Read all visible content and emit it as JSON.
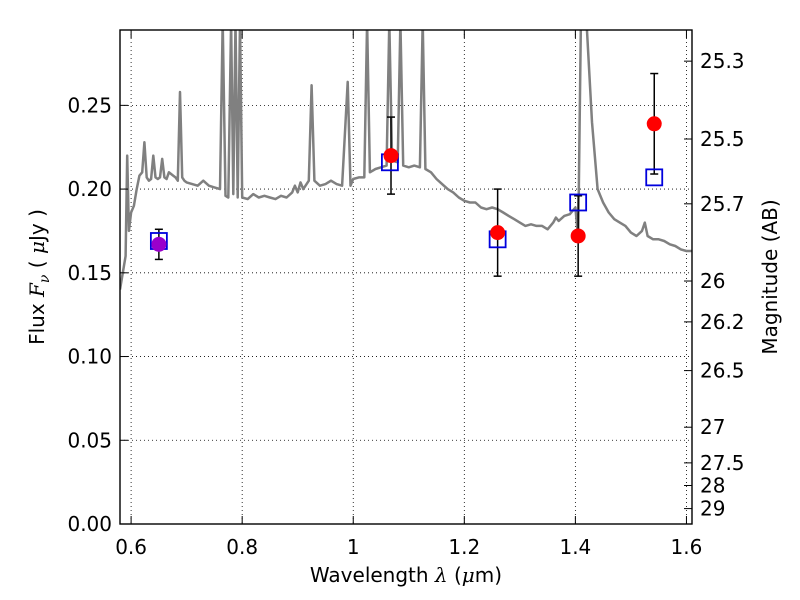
{
  "chart_data": {
    "type": "scatter",
    "xlabel": "Wavelength  λ (μm)",
    "xlabel_parts": {
      "prefix": "Wavelength  ",
      "symbol": "λ",
      "unit_open": " (",
      "unit_symbol": "μ",
      "unit_close": "m)"
    },
    "ylabel": "Flux  Fν  ( μJy )",
    "ylabel_parts": {
      "prefix": "Flux  ",
      "symbol": "F",
      "sub": "ν",
      "unit_open": "  ( ",
      "unit_symbol": "μ",
      "unit_close": "Jy )"
    },
    "y2label": "Magnitude (AB)",
    "xlim": [
      0.58,
      1.61
    ],
    "ylim": [
      0.0,
      0.295
    ],
    "grid": true,
    "x_ticks": [
      {
        "value": 0.6,
        "label": "0.6"
      },
      {
        "value": 0.8,
        "label": "0.8"
      },
      {
        "value": 1.0,
        "label": "1"
      },
      {
        "value": 1.2,
        "label": "1.2"
      },
      {
        "value": 1.4,
        "label": "1.4"
      },
      {
        "value": 1.6,
        "label": "1.6"
      }
    ],
    "y_ticks": [
      {
        "value": 0.0,
        "label": "0.00"
      },
      {
        "value": 0.05,
        "label": "0.05"
      },
      {
        "value": 0.1,
        "label": "0.10"
      },
      {
        "value": 0.15,
        "label": "0.15"
      },
      {
        "value": 0.2,
        "label": "0.20"
      },
      {
        "value": 0.25,
        "label": "0.25"
      }
    ],
    "y2_ticks": [
      {
        "label": "25.3",
        "flux": 0.2764
      },
      {
        "label": "25.5",
        "flux": 0.2299
      },
      {
        "label": "25.7",
        "flux": 0.1912
      },
      {
        "label": "26",
        "flux": 0.1451
      },
      {
        "label": "26.2",
        "flux": 0.1207
      },
      {
        "label": "26.5",
        "flux": 0.0916
      },
      {
        "label": "27",
        "flux": 0.0578
      },
      {
        "label": "27.5",
        "flux": 0.0365
      },
      {
        "label": "28",
        "flux": 0.023
      },
      {
        "label": "29",
        "flux": 0.0092
      }
    ],
    "series": [
      {
        "kind": "model_spectrum",
        "color": "#808080",
        "points": [
          [
            0.58,
            0.14
          ],
          [
            0.59,
            0.16
          ],
          [
            0.593,
            0.22
          ],
          [
            0.596,
            0.175
          ],
          [
            0.6,
            0.186
          ],
          [
            0.605,
            0.19
          ],
          [
            0.61,
            0.2
          ],
          [
            0.615,
            0.208
          ],
          [
            0.62,
            0.21
          ],
          [
            0.624,
            0.228
          ],
          [
            0.628,
            0.207
          ],
          [
            0.632,
            0.205
          ],
          [
            0.636,
            0.206
          ],
          [
            0.64,
            0.22
          ],
          [
            0.644,
            0.207
          ],
          [
            0.648,
            0.206
          ],
          [
            0.652,
            0.207
          ],
          [
            0.656,
            0.218
          ],
          [
            0.66,
            0.207
          ],
          [
            0.664,
            0.206
          ],
          [
            0.668,
            0.21
          ],
          [
            0.672,
            0.209
          ],
          [
            0.676,
            0.208
          ],
          [
            0.68,
            0.207
          ],
          [
            0.684,
            0.205
          ],
          [
            0.688,
            0.258
          ],
          [
            0.692,
            0.207
          ],
          [
            0.696,
            0.205
          ],
          [
            0.7,
            0.204
          ],
          [
            0.71,
            0.203
          ],
          [
            0.72,
            0.202
          ],
          [
            0.73,
            0.205
          ],
          [
            0.74,
            0.202
          ],
          [
            0.75,
            0.201
          ],
          [
            0.76,
            0.2
          ],
          [
            0.765,
            0.3
          ],
          [
            0.77,
            0.196
          ],
          [
            0.775,
            0.195
          ],
          [
            0.78,
            0.3
          ],
          [
            0.784,
            0.197
          ],
          [
            0.788,
            0.3
          ],
          [
            0.792,
            0.195
          ],
          [
            0.796,
            0.3
          ],
          [
            0.8,
            0.195
          ],
          [
            0.81,
            0.194
          ],
          [
            0.82,
            0.197
          ],
          [
            0.83,
            0.195
          ],
          [
            0.84,
            0.196
          ],
          [
            0.85,
            0.195
          ],
          [
            0.86,
            0.194
          ],
          [
            0.87,
            0.196
          ],
          [
            0.88,
            0.195
          ],
          [
            0.89,
            0.198
          ],
          [
            0.895,
            0.202
          ],
          [
            0.9,
            0.198
          ],
          [
            0.905,
            0.204
          ],
          [
            0.91,
            0.2
          ],
          [
            0.92,
            0.205
          ],
          [
            0.925,
            0.262
          ],
          [
            0.93,
            0.205
          ],
          [
            0.94,
            0.202
          ],
          [
            0.95,
            0.203
          ],
          [
            0.96,
            0.205
          ],
          [
            0.97,
            0.203
          ],
          [
            0.98,
            0.202
          ],
          [
            0.99,
            0.264
          ],
          [
            0.995,
            0.202
          ],
          [
            1.0,
            0.206
          ],
          [
            1.01,
            0.207
          ],
          [
            1.02,
            0.207
          ],
          [
            1.025,
            0.3
          ],
          [
            1.03,
            0.21
          ],
          [
            1.04,
            0.212
          ],
          [
            1.05,
            0.213
          ],
          [
            1.06,
            0.214
          ],
          [
            1.065,
            0.3
          ],
          [
            1.07,
            0.217
          ],
          [
            1.08,
            0.216
          ],
          [
            1.085,
            0.3
          ],
          [
            1.09,
            0.214
          ],
          [
            1.1,
            0.213
          ],
          [
            1.11,
            0.214
          ],
          [
            1.12,
            0.213
          ],
          [
            1.125,
            0.3
          ],
          [
            1.13,
            0.212
          ],
          [
            1.14,
            0.21
          ],
          [
            1.15,
            0.206
          ],
          [
            1.16,
            0.203
          ],
          [
            1.17,
            0.2
          ],
          [
            1.18,
            0.198
          ],
          [
            1.19,
            0.195
          ],
          [
            1.2,
            0.193
          ],
          [
            1.21,
            0.192
          ],
          [
            1.22,
            0.192
          ],
          [
            1.23,
            0.189
          ],
          [
            1.24,
            0.188
          ],
          [
            1.25,
            0.189
          ],
          [
            1.26,
            0.188
          ],
          [
            1.27,
            0.186
          ],
          [
            1.28,
            0.184
          ],
          [
            1.29,
            0.182
          ],
          [
            1.3,
            0.18
          ],
          [
            1.31,
            0.178
          ],
          [
            1.32,
            0.179
          ],
          [
            1.33,
            0.178
          ],
          [
            1.34,
            0.178
          ],
          [
            1.35,
            0.176
          ],
          [
            1.36,
            0.18
          ],
          [
            1.365,
            0.183
          ],
          [
            1.37,
            0.181
          ],
          [
            1.38,
            0.184
          ],
          [
            1.39,
            0.185
          ],
          [
            1.4,
            0.189
          ],
          [
            1.405,
            0.17
          ],
          [
            1.41,
            0.3
          ],
          [
            1.42,
            0.3
          ],
          [
            1.43,
            0.24
          ],
          [
            1.44,
            0.2
          ],
          [
            1.45,
            0.192
          ],
          [
            1.46,
            0.186
          ],
          [
            1.47,
            0.182
          ],
          [
            1.48,
            0.18
          ],
          [
            1.49,
            0.178
          ],
          [
            1.5,
            0.174
          ],
          [
            1.51,
            0.172
          ],
          [
            1.52,
            0.175
          ],
          [
            1.525,
            0.18
          ],
          [
            1.53,
            0.172
          ],
          [
            1.54,
            0.17
          ],
          [
            1.55,
            0.17
          ],
          [
            1.56,
            0.169
          ],
          [
            1.57,
            0.167
          ],
          [
            1.58,
            0.166
          ],
          [
            1.59,
            0.164
          ],
          [
            1.6,
            0.163
          ],
          [
            1.61,
            0.163
          ]
        ]
      },
      {
        "kind": "model_photometry",
        "marker": "open-square",
        "color": "#0000dd",
        "points": [
          {
            "x": 0.65,
            "y": 0.169
          },
          {
            "x": 1.066,
            "y": 0.216
          },
          {
            "x": 1.26,
            "y": 0.17
          },
          {
            "x": 1.405,
            "y": 0.192
          },
          {
            "x": 1.542,
            "y": 0.207
          }
        ]
      },
      {
        "kind": "observed_flux",
        "marker": "filled-circle",
        "color": "#ff0000",
        "points": [
          {
            "x": 0.65,
            "y": 0.167,
            "yerr": [
              0.009,
              0.009
            ],
            "color": "#9900cc"
          },
          {
            "x": 1.068,
            "y": 0.22,
            "yerr": [
              0.023,
              0.023
            ]
          },
          {
            "x": 1.26,
            "y": 0.174,
            "yerr": [
              0.026,
              0.026
            ]
          },
          {
            "x": 1.405,
            "y": 0.172,
            "yerr": [
              0.024,
              0.024
            ]
          },
          {
            "x": 1.542,
            "y": 0.239,
            "yerr": [
              0.03,
              0.03
            ]
          }
        ]
      }
    ]
  }
}
